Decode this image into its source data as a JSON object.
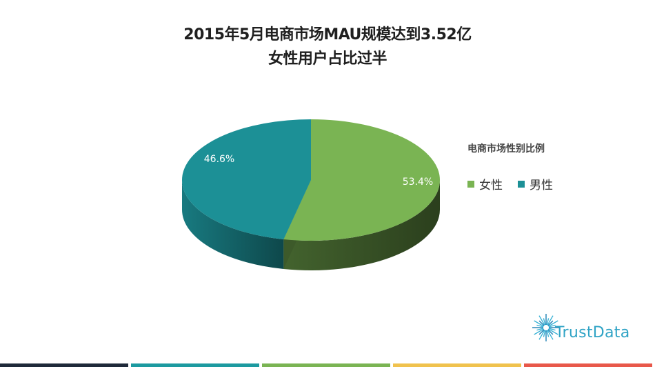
{
  "title": {
    "line1": "2015年5月电商市场MAU规模达到3.52亿",
    "line2": "女性用户占比过半"
  },
  "legend": {
    "title": "电商市场性别比例"
  },
  "chart_data": {
    "type": "pie",
    "title": "2015年5月电商市场MAU规模达到3.52亿 女性用户占比过半",
    "legend_title": "电商市场性别比例",
    "legend_position": "right",
    "labels": [
      "女性",
      "男性"
    ],
    "values": [
      53.4,
      46.6
    ],
    "data_labels": [
      "53.4%",
      "46.6%"
    ],
    "colors": [
      "#7ab453",
      "#1c9096"
    ],
    "style": "3d"
  },
  "logo": {
    "text": "TrustData",
    "name": "trustdata-logo"
  },
  "footer_bar_colors": [
    "#1f2a3a",
    "#1c9aa0",
    "#7ab453",
    "#f0c24e",
    "#e8584a"
  ]
}
